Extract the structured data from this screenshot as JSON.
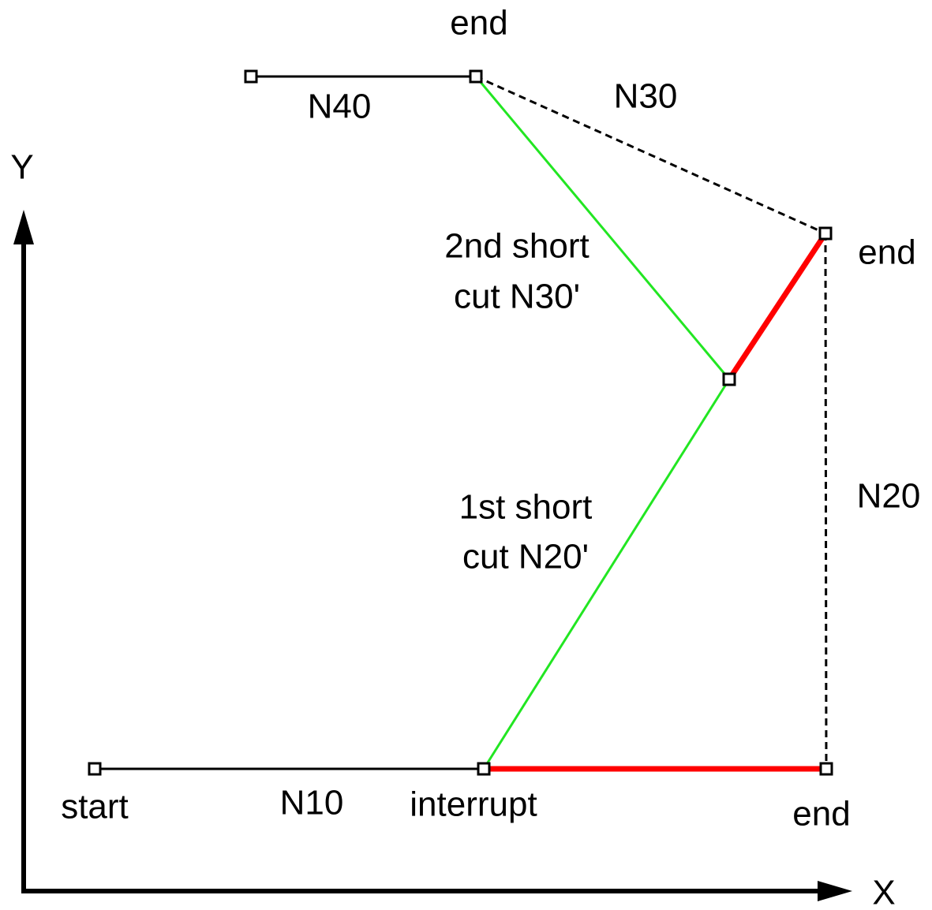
{
  "labels": {
    "top_end": "end",
    "n40": "N40",
    "n30": "N30",
    "y_axis": "Y",
    "second_cut": [
      "2nd short",
      "cut N30'"
    ],
    "right_end": "end",
    "n20": "N20",
    "first_cut": [
      "1st short",
      "cut N20'"
    ],
    "start": "start",
    "n10": "N10",
    "interrupt": "interrupt",
    "bottom_end": "end",
    "x_axis": "X"
  }
}
